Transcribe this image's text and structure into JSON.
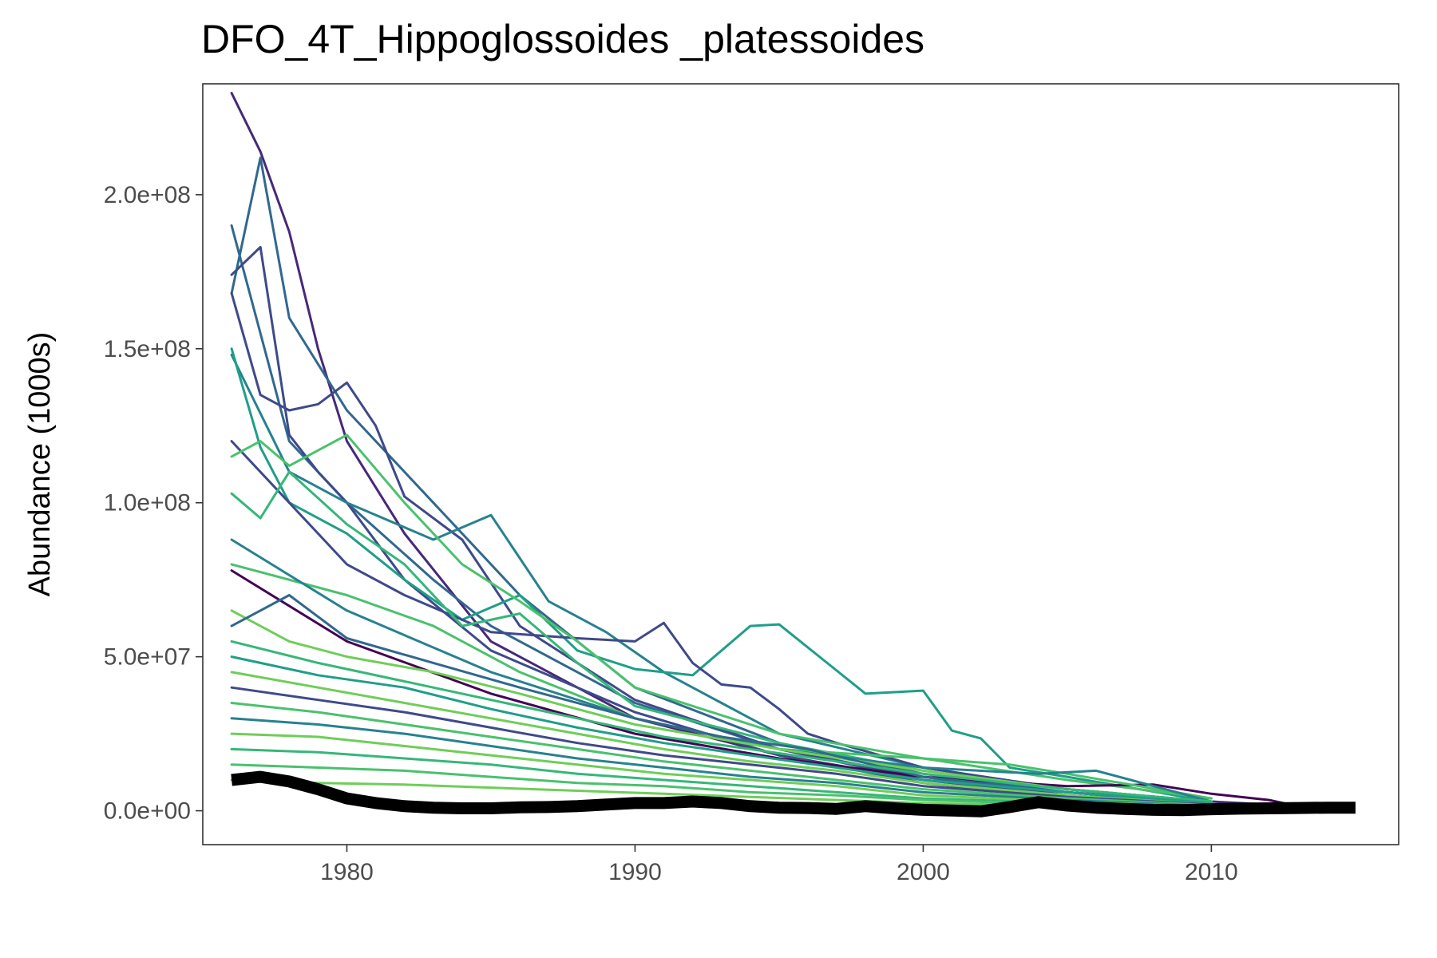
{
  "chart_data": {
    "type": "line",
    "title": "DFO_4T_Hippoglossoides _platessoides",
    "xlabel": "",
    "ylabel": "Abundance (1000s)",
    "xlim": [
      1975,
      2016.5
    ],
    "ylim": [
      -11000000,
      236000000
    ],
    "x_ticks": [
      1980,
      1990,
      2000,
      2010
    ],
    "x_tick_labels": [
      "1980",
      "1990",
      "2000",
      "2010"
    ],
    "y_ticks": [
      0,
      50000000,
      100000000,
      150000000,
      200000000
    ],
    "y_tick_labels": [
      "0.0e+00",
      "5.0e+07",
      "1.0e+08",
      "1.5e+08",
      "2.0e+08"
    ],
    "grid": false,
    "legend": "none",
    "colors": {
      "palette": [
        "#440154",
        "#482878",
        "#3e4a89",
        "#31688e",
        "#26828e",
        "#1f9e89",
        "#35b779",
        "#4ac16d",
        "#6ece58"
      ],
      "mean_line": "#000000",
      "panel_border": "#333333",
      "tick": "#333333"
    },
    "series": [
      {
        "color_index": 1,
        "x": [
          1976,
          1977,
          1978,
          1979,
          1980,
          1982,
          1985,
          1990,
          1995,
          2000,
          2005,
          2010,
          2013
        ],
        "y": [
          233000000,
          214000000,
          188000000,
          150000000,
          120000000,
          90000000,
          55000000,
          30000000,
          18000000,
          10000000,
          6000000,
          3000000,
          1500000
        ]
      },
      {
        "color_index": 3,
        "x": [
          1976,
          1977,
          1978,
          1980,
          1983,
          1986,
          1990,
          1995,
          2000,
          2005,
          2010
        ],
        "y": [
          168000000,
          212000000,
          160000000,
          130000000,
          100000000,
          70000000,
          40000000,
          22000000,
          12000000,
          6000000,
          2500000
        ]
      },
      {
        "color_index": 3,
        "x": [
          1976,
          1977,
          1978,
          1980,
          1983,
          1985,
          1990,
          1995,
          2000,
          2005,
          2010
        ],
        "y": [
          190000000,
          155000000,
          120000000,
          100000000,
          75000000,
          60000000,
          35000000,
          20000000,
          11000000,
          5000000,
          2000000
        ]
      },
      {
        "color_index": 2,
        "x": [
          1976,
          1977,
          1978,
          1979,
          1980,
          1982,
          1985,
          1990,
          1995,
          2000,
          2005,
          2010
        ],
        "y": [
          174000000,
          183000000,
          122000000,
          110000000,
          100000000,
          75000000,
          52000000,
          32000000,
          18000000,
          9000000,
          4000000,
          2000000
        ]
      },
      {
        "color_index": 2,
        "x": [
          1976,
          1977,
          1978,
          1979,
          1980,
          1981,
          1982,
          1984,
          1986,
          1990,
          1995,
          2000,
          2005,
          2010
        ],
        "y": [
          168000000,
          135000000,
          130000000,
          132000000,
          139000000,
          125000000,
          102000000,
          88000000,
          60000000,
          36000000,
          20000000,
          10000000,
          5000000,
          2000000
        ]
      },
      {
        "color_index": 4,
        "x": [
          1976,
          1978,
          1980,
          1983,
          1985,
          1987,
          1989,
          1991,
          1993,
          1995,
          2000,
          2005,
          2010
        ],
        "y": [
          148000000,
          110000000,
          100000000,
          88000000,
          96000000,
          68000000,
          58000000,
          45000000,
          35000000,
          25000000,
          14000000,
          7000000,
          3000000
        ]
      },
      {
        "color_index": 5,
        "x": [
          1976,
          1977,
          1978,
          1980,
          1982,
          1984,
          1986,
          1988,
          1990,
          1992,
          1994,
          1995,
          1998,
          2000,
          2001,
          2002,
          2003,
          2005,
          2010
        ],
        "y": [
          150000000,
          118000000,
          100000000,
          90000000,
          75000000,
          62000000,
          70000000,
          52000000,
          46000000,
          44000000,
          60000000,
          60500000,
          38000000,
          39000000,
          26000000,
          23500000,
          14000000,
          11000000,
          3000000
        ]
      },
      {
        "color_index": 2,
        "x": [
          1976,
          1978,
          1980,
          1982,
          1985,
          1988,
          1990,
          1991,
          1992,
          1993,
          1994,
          1995,
          1996,
          1997,
          2000,
          2005,
          2010
        ],
        "y": [
          120000000,
          100000000,
          80000000,
          70000000,
          58000000,
          56000000,
          55000000,
          61000000,
          48000000,
          41000000,
          40000000,
          33000000,
          25000000,
          22000000,
          14000000,
          7000000,
          3000000
        ]
      },
      {
        "color_index": 7,
        "x": [
          1976,
          1977,
          1978,
          1980,
          1982,
          1984,
          1986,
          1988,
          1990,
          1995,
          2000,
          2005,
          2010
        ],
        "y": [
          115000000,
          120000000,
          112000000,
          122000000,
          100000000,
          80000000,
          68000000,
          55000000,
          40000000,
          25000000,
          17000000,
          10000000,
          4000000
        ]
      },
      {
        "color_index": 6,
        "x": [
          1976,
          1977,
          1978,
          1980,
          1982,
          1984,
          1986,
          1988,
          1990,
          1995,
          2000,
          2005,
          2010
        ],
        "y": [
          103000000,
          95000000,
          110000000,
          93000000,
          80000000,
          60000000,
          64000000,
          48000000,
          34000000,
          22000000,
          13000000,
          7000000,
          3000000
        ]
      },
      {
        "color_index": 0,
        "x": [
          1976,
          1980,
          1985,
          1990,
          1995,
          2000,
          2005,
          2008,
          2010,
          2012,
          2013
        ],
        "y": [
          78000000,
          55000000,
          38000000,
          25000000,
          17000000,
          11000000,
          8000000,
          8500000,
          5500000,
          3500000,
          1500000
        ]
      },
      {
        "color_index": 7,
        "x": [
          1976,
          1980,
          1983,
          1986,
          1990,
          1995,
          2000,
          2003,
          2005,
          2010
        ],
        "y": [
          80000000,
          70000000,
          60000000,
          45000000,
          30000000,
          20000000,
          17000000,
          15000000,
          12000000,
          4000000
        ]
      },
      {
        "color_index": 4,
        "x": [
          1976,
          1980,
          1985,
          1990,
          1995,
          2000,
          2004,
          2006,
          2008,
          2010
        ],
        "y": [
          88000000,
          65000000,
          45000000,
          30000000,
          20000000,
          14000000,
          12000000,
          13000000,
          8000000,
          3000000
        ]
      },
      {
        "color_index": 8,
        "x": [
          1976,
          1978,
          1980,
          1983,
          1986,
          1990,
          1995,
          2000,
          2005,
          2010
        ],
        "y": [
          65000000,
          55000000,
          50000000,
          45000000,
          38000000,
          28000000,
          20000000,
          13000000,
          7000000,
          3000000
        ]
      },
      {
        "color_index": 3,
        "x": [
          1976,
          1978,
          1980,
          1983,
          1986,
          1990,
          1993,
          1996,
          2000,
          2005,
          2010
        ],
        "y": [
          60000000,
          70000000,
          56000000,
          48000000,
          40000000,
          30000000,
          24000000,
          20000000,
          11000000,
          6000000,
          2000000
        ]
      },
      {
        "color_index": 6,
        "x": [
          1976,
          1979,
          1982,
          1985,
          1988,
          1991,
          1994,
          1997,
          2000,
          2005,
          2010
        ],
        "y": [
          55000000,
          48000000,
          42000000,
          36000000,
          30000000,
          24000000,
          20000000,
          16000000,
          12000000,
          7000000,
          3000000
        ]
      },
      {
        "color_index": 5,
        "x": [
          1976,
          1979,
          1982,
          1985,
          1988,
          1991,
          1994,
          1997,
          2000,
          2005,
          2010
        ],
        "y": [
          50000000,
          44000000,
          40000000,
          33000000,
          27000000,
          22000000,
          18000000,
          14000000,
          10000000,
          6000000,
          2500000
        ]
      },
      {
        "color_index": 8,
        "x": [
          1976,
          1979,
          1982,
          1985,
          1988,
          1991,
          1994,
          1997,
          2000,
          2005,
          2010
        ],
        "y": [
          45000000,
          40000000,
          35000000,
          30000000,
          25000000,
          20000000,
          16000000,
          13000000,
          9000000,
          5000000,
          2000000
        ]
      },
      {
        "color_index": 2,
        "x": [
          1976,
          1979,
          1982,
          1985,
          1988,
          1991,
          1994,
          1997,
          2000,
          2005,
          2010
        ],
        "y": [
          40000000,
          36000000,
          32000000,
          27000000,
          22000000,
          18000000,
          15000000,
          12000000,
          8000000,
          4500000,
          2000000
        ]
      },
      {
        "color_index": 7,
        "x": [
          1976,
          1979,
          1982,
          1985,
          1988,
          1991,
          1994,
          1997,
          2000,
          2005,
          2010
        ],
        "y": [
          35000000,
          32000000,
          28000000,
          24000000,
          20000000,
          16000000,
          13000000,
          10000000,
          7000000,
          4000000,
          1800000
        ]
      },
      {
        "color_index": 4,
        "x": [
          1976,
          1979,
          1982,
          1985,
          1988,
          1991,
          1994,
          1997,
          2000,
          2005,
          2010
        ],
        "y": [
          30000000,
          28000000,
          25000000,
          21000000,
          17000000,
          14000000,
          11000000,
          9000000,
          6000000,
          3500000,
          1500000
        ]
      },
      {
        "color_index": 8,
        "x": [
          1976,
          1979,
          1982,
          1985,
          1988,
          1991,
          1994,
          1997,
          2000,
          2005,
          2010
        ],
        "y": [
          25000000,
          24000000,
          21000000,
          18000000,
          15000000,
          12000000,
          10000000,
          8000000,
          5000000,
          3000000,
          1300000
        ]
      },
      {
        "color_index": 6,
        "x": [
          1976,
          1979,
          1982,
          1985,
          1988,
          1991,
          1994,
          1997,
          2000,
          2005,
          2010
        ],
        "y": [
          20000000,
          19000000,
          17000000,
          15000000,
          12000000,
          10000000,
          8000000,
          6000000,
          4000000,
          2500000,
          1000000
        ]
      },
      {
        "color_index": 7,
        "x": [
          1976,
          1979,
          1982,
          1985,
          1988,
          1991,
          1994,
          1997,
          2000,
          2005,
          2010
        ],
        "y": [
          15000000,
          14000000,
          13000000,
          11000000,
          9000000,
          8000000,
          6000000,
          5000000,
          3500000,
          2000000,
          900000
        ]
      },
      {
        "color_index": 8,
        "x": [
          1976,
          1979,
          1982,
          1985,
          1988,
          1991,
          1994,
          1997,
          2000,
          2005,
          2010
        ],
        "y": [
          10000000,
          9000000,
          8500000,
          7500000,
          6500000,
          5500000,
          4500000,
          3500000,
          2500000,
          1500000,
          700000
        ]
      }
    ],
    "mean_line": {
      "x": [
        1976,
        1977,
        1978,
        1979,
        1980,
        1981,
        1982,
        1983,
        1984,
        1985,
        1986,
        1987,
        1988,
        1989,
        1990,
        1991,
        1992,
        1993,
        1994,
        1995,
        1996,
        1997,
        1998,
        1999,
        2000,
        2001,
        2002,
        2003,
        2004,
        2005,
        2006,
        2007,
        2008,
        2009,
        2010,
        2011,
        2012,
        2013,
        2014,
        2015
      ],
      "y": [
        10000000,
        11000000,
        9500000,
        7000000,
        4000000,
        2500000,
        1500000,
        1000000,
        800000,
        800000,
        1100000,
        1200000,
        1500000,
        2000000,
        2500000,
        2500000,
        3000000,
        2500000,
        1500000,
        1000000,
        900000,
        600000,
        1500000,
        800000,
        300000,
        100000,
        -200000,
        1200000,
        2800000,
        1700000,
        1000000,
        600000,
        300000,
        200000,
        500000,
        700000,
        800000,
        900000,
        1000000,
        1000000
      ]
    }
  }
}
